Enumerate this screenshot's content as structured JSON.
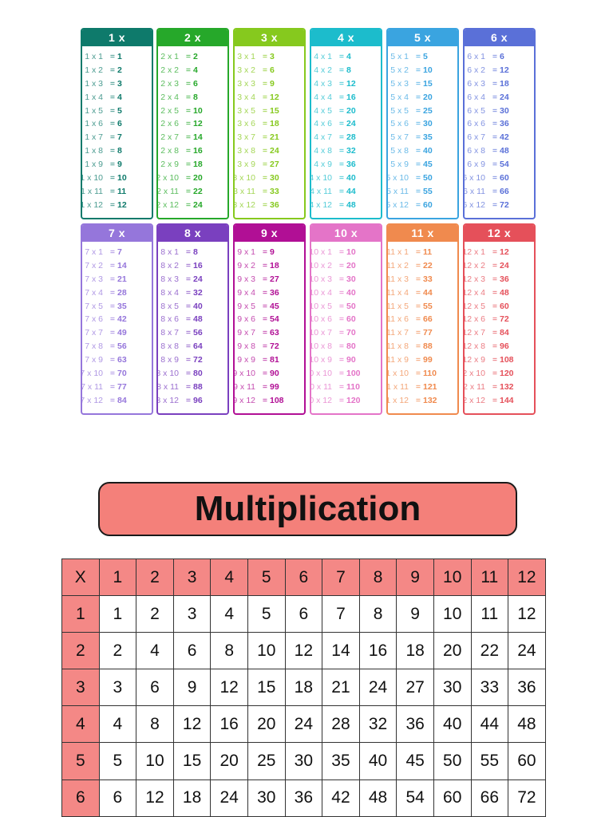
{
  "cards": [
    {
      "n": 1,
      "label": "1 x",
      "color": "#0e7a6b"
    },
    {
      "n": 2,
      "label": "2 x",
      "color": "#26a82a"
    },
    {
      "n": 3,
      "label": "3 x",
      "color": "#86c91e"
    },
    {
      "n": 4,
      "label": "4 x",
      "color": "#1cbccc"
    },
    {
      "n": 5,
      "label": "5 x",
      "color": "#3aa4e0"
    },
    {
      "n": 6,
      "label": "6 x",
      "color": "#5a70d8"
    },
    {
      "n": 7,
      "label": "7 x",
      "color": "#9576db"
    },
    {
      "n": 8,
      "label": "8 x",
      "color": "#7a40bf"
    },
    {
      "n": 9,
      "label": "9 x",
      "color": "#b10f95"
    },
    {
      "n": 10,
      "label": "10 x",
      "color": "#e474c8"
    },
    {
      "n": 11,
      "label": "11 x",
      "color": "#f08a4e"
    },
    {
      "n": 12,
      "label": "12 x",
      "color": "#e5505a"
    }
  ],
  "banner": {
    "title": "Multiplication"
  },
  "table": {
    "corner": "X",
    "columns": [
      "1",
      "2",
      "3",
      "4",
      "5",
      "6",
      "7",
      "8",
      "9",
      "10",
      "11",
      "12"
    ],
    "rows": [
      {
        "label": "1",
        "cells": [
          "1",
          "2",
          "3",
          "4",
          "5",
          "6",
          "7",
          "8",
          "9",
          "10",
          "11",
          "12"
        ]
      },
      {
        "label": "2",
        "cells": [
          "2",
          "4",
          "6",
          "8",
          "10",
          "12",
          "14",
          "16",
          "18",
          "20",
          "22",
          "24"
        ]
      },
      {
        "label": "3",
        "cells": [
          "3",
          "6",
          "9",
          "12",
          "15",
          "18",
          "21",
          "24",
          "27",
          "30",
          "33",
          "36"
        ]
      },
      {
        "label": "4",
        "cells": [
          "4",
          "8",
          "12",
          "16",
          "20",
          "24",
          "28",
          "32",
          "36",
          "40",
          "44",
          "48"
        ]
      },
      {
        "label": "5",
        "cells": [
          "5",
          "10",
          "15",
          "20",
          "25",
          "30",
          "35",
          "40",
          "45",
          "50",
          "55",
          "60"
        ]
      },
      {
        "label": "6",
        "cells": [
          "6",
          "12",
          "18",
          "24",
          "30",
          "36",
          "42",
          "48",
          "54",
          "60",
          "66",
          "72"
        ]
      }
    ]
  },
  "colors": {
    "table_header": "#f48886",
    "banner_fill": "#f4807a"
  }
}
